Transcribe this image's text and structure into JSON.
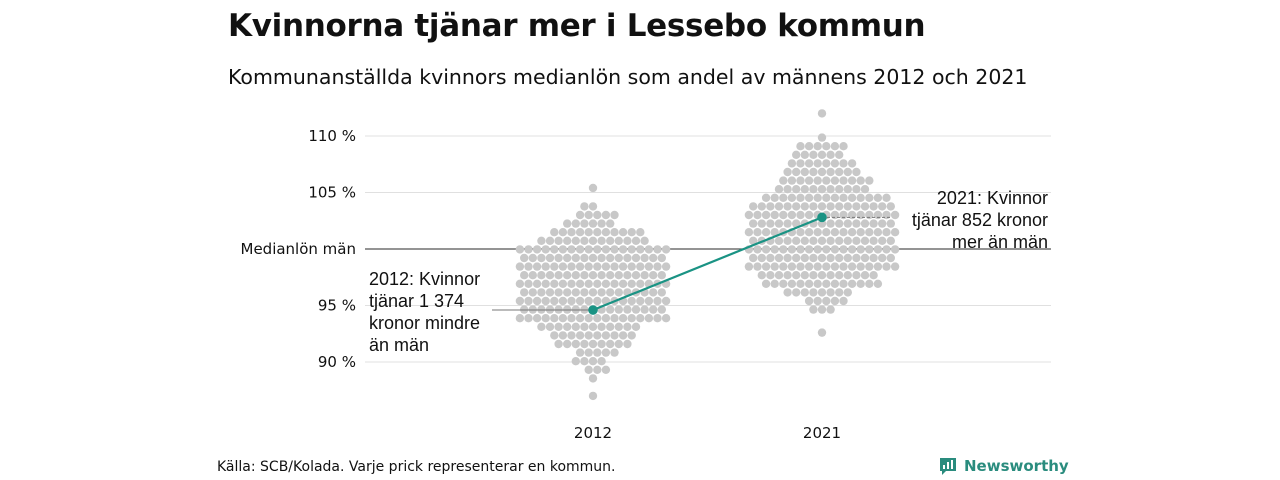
{
  "title": "Kvinnorna tjänar mer i Lessebo kommun",
  "subtitle": "Kommunanställda kvinnors medianlön som andel av männens 2012 och 2021",
  "source": "Källa: SCB/Kolada. Varje prick representerar en kommun.",
  "brand": {
    "name": "Newsworthy",
    "color": "#2a8c7e",
    "icon": "bar-chart-speech-icon"
  },
  "chart_data": {
    "type": "scatter",
    "subtype": "beeswarm",
    "title": "Kvinnorna tjänar mer i Lessebo kommun",
    "subtitle": "Kommunanställda kvinnors medianlön som andel av männens 2012 och 2021",
    "categories": [
      "2012",
      "2021"
    ],
    "ylim": [
      87,
      112
    ],
    "y_ticks": [
      {
        "value": 90,
        "label": "90 %"
      },
      {
        "value": 95,
        "label": "95 %"
      },
      {
        "value": 100,
        "label": "Medianlön män"
      },
      {
        "value": 105,
        "label": "105 %"
      },
      {
        "value": 110,
        "label": "110 %"
      }
    ],
    "grid": true,
    "reference_line": {
      "value": 100,
      "label": "Medianlön män"
    },
    "colors": {
      "dots": "#c8c8c8",
      "highlight": "#1a9384",
      "grid": "#e0e0e0",
      "reference": "#555555"
    },
    "distribution": [
      {
        "category": "2012",
        "median": 96.5,
        "min": 87.0,
        "max": 105.4,
        "count": 290
      },
      {
        "category": "2021",
        "median": 100.8,
        "min": 92.6,
        "max": 112.0,
        "count": 290
      }
    ],
    "highlight": {
      "name": "Lessebo",
      "values": [
        {
          "x": "2012",
          "y": 94.6
        },
        {
          "x": "2021",
          "y": 102.8
        }
      ]
    },
    "annotations": [
      {
        "x": "2012",
        "y": 94.6,
        "text": "2012: Kvinnor\ntjänar 1 374\nkronor mindre\nän män"
      },
      {
        "x": "2021",
        "y": 102.8,
        "text": "2021: Kvinnor\ntjänar 852 kronor\nmer än män"
      }
    ]
  }
}
